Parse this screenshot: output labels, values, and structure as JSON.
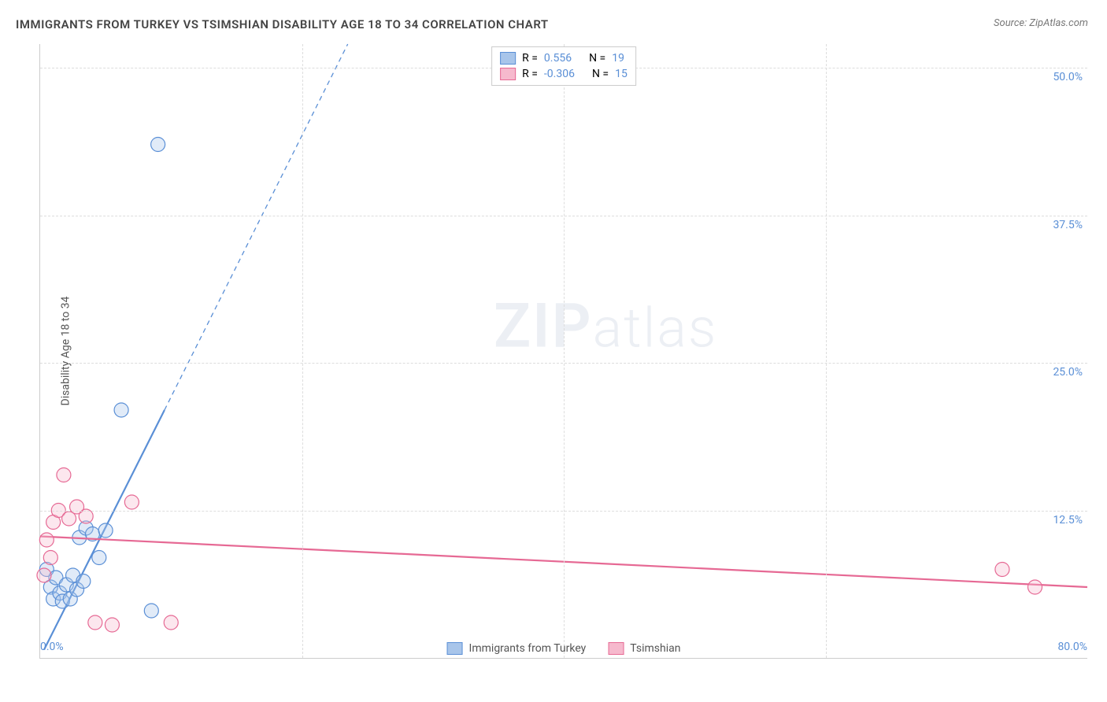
{
  "title": "IMMIGRANTS FROM TURKEY VS TSIMSHIAN DISABILITY AGE 18 TO 34 CORRELATION CHART",
  "source": "Source: ZipAtlas.com",
  "ylabel": "Disability Age 18 to 34",
  "watermark_zip": "ZIP",
  "watermark_atlas": "atlas",
  "chart": {
    "type": "scatter",
    "xlim": [
      0,
      80
    ],
    "ylim": [
      0,
      52
    ],
    "xticks": [
      {
        "v": 0,
        "l": "0.0%"
      },
      {
        "v": 80,
        "l": "80.0%"
      }
    ],
    "yticks": [
      {
        "v": 12.5,
        "l": "12.5%"
      },
      {
        "v": 25,
        "l": "25.0%"
      },
      {
        "v": 37.5,
        "l": "37.5%"
      },
      {
        "v": 50,
        "l": "50.0%"
      }
    ],
    "vgrid": [
      20,
      40,
      60
    ],
    "background_color": "#ffffff",
    "grid_color": "#dddddd",
    "axis_color": "#cccccc",
    "tick_color": "#5a8fd6",
    "marker_radius": 9,
    "marker_stroke_width": 1.2,
    "fill_opacity": 0.35
  },
  "series": [
    {
      "name": "Immigrants from Turkey",
      "color": "#5a8fd6",
      "fill": "#a8c5ea",
      "R_label": "R =",
      "R": "0.556",
      "N_label": "N =",
      "N": "19",
      "trend": {
        "x1": 0.3,
        "y1": 0.7,
        "x2": 9.5,
        "y2": 21.0,
        "width": 2.2
      },
      "trend_ext": {
        "x1": 9.5,
        "y1": 21.0,
        "x2": 23.5,
        "y2": 52.0,
        "dash": "6,5",
        "width": 1.3
      },
      "points": [
        {
          "x": 0.5,
          "y": 7.5
        },
        {
          "x": 0.8,
          "y": 6.0
        },
        {
          "x": 1.0,
          "y": 5.0
        },
        {
          "x": 1.2,
          "y": 6.8
        },
        {
          "x": 1.5,
          "y": 5.5
        },
        {
          "x": 1.7,
          "y": 4.8
        },
        {
          "x": 2.0,
          "y": 6.2
        },
        {
          "x": 2.3,
          "y": 5.0
        },
        {
          "x": 2.5,
          "y": 7.0
        },
        {
          "x": 2.8,
          "y": 5.8
        },
        {
          "x": 3.0,
          "y": 10.2
        },
        {
          "x": 3.3,
          "y": 6.5
        },
        {
          "x": 3.5,
          "y": 11.0
        },
        {
          "x": 4.0,
          "y": 10.5
        },
        {
          "x": 4.5,
          "y": 8.5
        },
        {
          "x": 5.0,
          "y": 10.8
        },
        {
          "x": 6.2,
          "y": 21.0
        },
        {
          "x": 8.5,
          "y": 4.0
        },
        {
          "x": 9.0,
          "y": 43.5
        }
      ]
    },
    {
      "name": "Tsimshian",
      "color": "#e66994",
      "fill": "#f6b9cd",
      "R_label": "R =",
      "R": "-0.306",
      "N_label": "N =",
      "N": "15",
      "trend": {
        "x1": 0,
        "y1": 10.3,
        "x2": 80,
        "y2": 6.0,
        "width": 2.2
      },
      "points": [
        {
          "x": 0.3,
          "y": 7.0
        },
        {
          "x": 0.5,
          "y": 10.0
        },
        {
          "x": 0.8,
          "y": 8.5
        },
        {
          "x": 1.0,
          "y": 11.5
        },
        {
          "x": 1.4,
          "y": 12.5
        },
        {
          "x": 1.8,
          "y": 15.5
        },
        {
          "x": 2.2,
          "y": 11.8
        },
        {
          "x": 2.8,
          "y": 12.8
        },
        {
          "x": 3.5,
          "y": 12.0
        },
        {
          "x": 4.2,
          "y": 3.0
        },
        {
          "x": 5.5,
          "y": 2.8
        },
        {
          "x": 7.0,
          "y": 13.2
        },
        {
          "x": 10.0,
          "y": 3.0
        },
        {
          "x": 73.5,
          "y": 7.5
        },
        {
          "x": 76.0,
          "y": 6.0
        }
      ]
    }
  ]
}
